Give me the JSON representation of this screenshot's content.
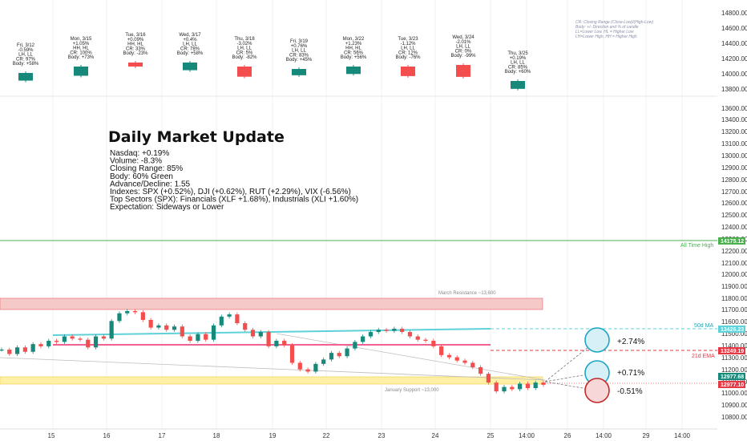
{
  "chart_data": {
    "type": "candlestick",
    "title": "Daily Market Update",
    "summary_lines": [
      "Nasdaq: +0.19%",
      "Volume: -8.3%",
      "Closing Range: 85%",
      "Body: 60% Green",
      "Advance/Decline: 1.55",
      "Indexes: SPX (+0.52%), DJI (+0.62%), RUT (+2.29%), VIX (-6.56%)",
      "Top Sectors (SPX): Financials (XLF +1.68%), Industrials (XLI +1.60%)",
      "Expectation: Sideways or Lower"
    ],
    "legend_note": [
      "CR: Closing Range (Close-Low)/(High-Low)",
      "Body: +/- Direction and % of candle",
      "LL=Lower Low, HL = Higher Low",
      "LH=Lower High, HH = Higher High"
    ],
    "y_axis_labels": [
      "14800.00",
      "14600.00",
      "14400.00",
      "14200.00",
      "14000.00",
      "13800.00",
      "13600.00",
      "13400.00",
      "13200.00",
      "13100.00",
      "13000.00",
      "12900.00",
      "12800.00",
      "12700.00",
      "12600.00",
      "12500.00",
      "12400.00",
      "12300.00",
      "12200.00",
      "12100.00",
      "12000.00",
      "11900.00",
      "11800.00",
      "11700.00",
      "11600.00",
      "11500.00",
      "11400.00",
      "11300.00",
      "11200.00",
      "11100.00",
      "11000.00",
      "10900.00",
      "10800.00"
    ],
    "x_axis_labels": [
      "15",
      "16",
      "17",
      "18",
      "19",
      "22",
      "23",
      "24",
      "25",
      "14:00",
      "26",
      "14:00",
      "29",
      "14:00"
    ],
    "lower_price_range": [
      12600,
      14000
    ],
    "price_line": [
      [
        1,
        13300
      ],
      [
        2,
        13260
      ],
      [
        3,
        13320
      ],
      [
        4,
        13280
      ],
      [
        5,
        13350
      ],
      [
        6,
        13330
      ],
      [
        7,
        13380
      ],
      [
        8,
        13370
      ],
      [
        9,
        13420
      ],
      [
        10,
        13400
      ],
      [
        11,
        13390
      ],
      [
        12,
        13320
      ],
      [
        13,
        13420
      ],
      [
        14,
        13400
      ],
      [
        15,
        13560
      ],
      [
        16,
        13630
      ],
      [
        17,
        13650
      ],
      [
        18,
        13640
      ],
      [
        19,
        13570
      ],
      [
        20,
        13500
      ],
      [
        21,
        13520
      ],
      [
        22,
        13480
      ],
      [
        23,
        13510
      ],
      [
        24,
        13420
      ],
      [
        25,
        13380
      ],
      [
        26,
        13440
      ],
      [
        27,
        13390
      ],
      [
        28,
        13520
      ],
      [
        29,
        13600
      ],
      [
        30,
        13620
      ],
      [
        31,
        13540
      ],
      [
        32,
        13480
      ],
      [
        33,
        13420
      ],
      [
        34,
        13460
      ],
      [
        35,
        13330
      ],
      [
        36,
        13380
      ],
      [
        37,
        13340
      ],
      [
        38,
        13180
      ],
      [
        39,
        13120
      ],
      [
        40,
        13100
      ],
      [
        41,
        13170
      ],
      [
        42,
        13210
      ],
      [
        43,
        13270
      ],
      [
        44,
        13240
      ],
      [
        45,
        13310
      ],
      [
        46,
        13370
      ],
      [
        47,
        13420
      ],
      [
        48,
        13460
      ],
      [
        49,
        13480
      ],
      [
        50,
        13470
      ],
      [
        51,
        13490
      ],
      [
        52,
        13460
      ],
      [
        53,
        13420
      ],
      [
        54,
        13390
      ],
      [
        55,
        13380
      ],
      [
        56,
        13330
      ],
      [
        57,
        13250
      ],
      [
        58,
        13230
      ],
      [
        59,
        13200
      ],
      [
        60,
        13180
      ],
      [
        61,
        13140
      ],
      [
        62,
        13080
      ],
      [
        63,
        13000
      ],
      [
        64,
        12920
      ],
      [
        65,
        12960
      ],
      [
        66,
        12940
      ],
      [
        67,
        12990
      ],
      [
        68,
        12950
      ],
      [
        69,
        13000
      ],
      [
        70,
        12980
      ]
    ],
    "daily_boxes": [
      {
        "day": "Fri, 3/12",
        "lines": [
          "Fri, 3/12",
          "-0.59%",
          "LH, LL",
          "CR: 97%",
          "Body: +58%"
        ],
        "direction": "up",
        "body": 0.58
      },
      {
        "day": "Mon, 3/15",
        "lines": [
          "Mon, 3/15",
          "+1.05%",
          "HH, HL",
          "CR: 100%",
          "Body: +73%"
        ],
        "direction": "up",
        "body": 0.73
      },
      {
        "day": "Tue, 3/16",
        "lines": [
          "Tue, 3/16",
          "+0.09%",
          "HH, HL",
          "CR: 33%",
          "Body: -23%"
        ],
        "direction": "down",
        "body": 0.23
      },
      {
        "day": "Wed, 3/17",
        "lines": [
          "Wed, 3/17",
          "+0.4%",
          "LH, LL",
          "CR: 78%",
          "Body: +58%"
        ],
        "direction": "up",
        "body": 0.58
      },
      {
        "day": "Thu, 3/18",
        "lines": [
          "Thu, 3/18",
          "-3.02%",
          "LH, LL",
          "CR: 5%",
          "Body: -82%"
        ],
        "direction": "down",
        "body": 0.82
      },
      {
        "day": "Fri, 3/19",
        "lines": [
          "Fri, 3/19",
          "+0.76%",
          "LH, LL",
          "CR: 83%",
          "Body: +45%"
        ],
        "direction": "up",
        "body": 0.45
      },
      {
        "day": "Mon, 3/22",
        "lines": [
          "Mon, 3/22",
          "+1.23%",
          "HH, HL",
          "CR: 56%",
          "Body: +56%"
        ],
        "direction": "up",
        "body": 0.56
      },
      {
        "day": "Tue, 3/23",
        "lines": [
          "Tue, 3/23",
          "-1.12%",
          "LH, LL",
          "CR: 12%",
          "Body: -76%"
        ],
        "direction": "down",
        "body": 0.76
      },
      {
        "day": "Wed, 3/24",
        "lines": [
          "Wed, 3/24",
          "-2.01%",
          "LH, LL",
          "CR: 0%",
          "Body: -99%"
        ],
        "direction": "down",
        "body": 0.99
      },
      {
        "day": "Thu, 3/25",
        "lines": [
          "Thu, 3/25",
          "+0.19%",
          "LH, LL",
          "CR: 85%",
          "Body: +60%"
        ],
        "direction": "up",
        "body": 0.6
      }
    ],
    "levels": {
      "all_time_high": {
        "label": "All Time High",
        "value_label": "14175.12",
        "value": 14175.12
      },
      "ma50": {
        "label": "50d MA",
        "value_label": "13426.23",
        "value": 13426.23
      },
      "ema21": {
        "label": "21d EMA",
        "value_label": "13249.19",
        "value": 13249.19
      },
      "last_price": {
        "value_label": "12977.68",
        "value": 12977.68
      },
      "close_price": {
        "value_label": "12977.10",
        "value": 12977.1
      },
      "march_resistance": {
        "label": "March Resistance ~13,600",
        "value": 13600
      },
      "january_support": {
        "label": "January Support ~13,000",
        "value": 13000
      }
    },
    "scenarios": [
      {
        "label": "+2.74%",
        "value": 13330
      },
      {
        "label": "+0.71%",
        "value": 13070
      },
      {
        "label": "-0.51%",
        "value": 12910
      }
    ],
    "colors": {
      "up": "#16897b",
      "down": "#f44d4d",
      "ma50": "#5fd1d8",
      "ema21": "#f06292",
      "ath": "#4caf50",
      "support": "#fff0a6",
      "resistance": "#f6c9c9"
    }
  }
}
